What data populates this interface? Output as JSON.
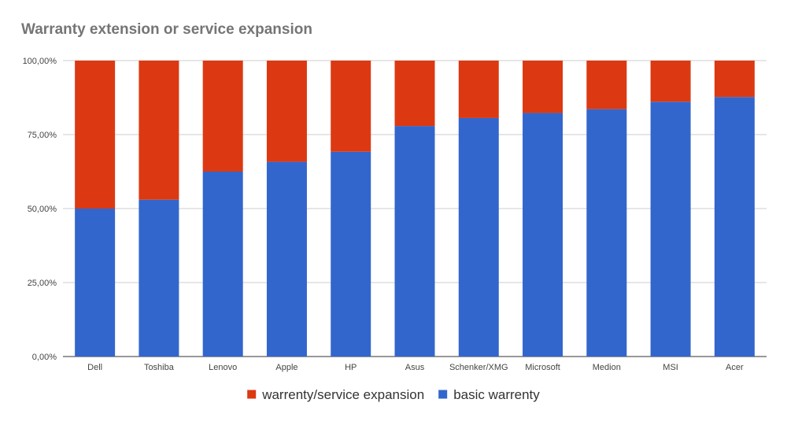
{
  "chart_data": {
    "type": "bar",
    "stacked": true,
    "title": "Warranty extension or service expansion",
    "xlabel": "",
    "ylabel": "",
    "ylim": [
      0,
      100
    ],
    "yticks": [
      0,
      25,
      50,
      75,
      100
    ],
    "ytick_labels": [
      "0,00%",
      "25,00%",
      "50,00%",
      "75,00%",
      "100,00%"
    ],
    "grid": true,
    "legend_position": "bottom",
    "categories": [
      "Dell",
      "Toshiba",
      "Lenovo",
      "Apple",
      "HP",
      "Asus",
      "Schenker/XMG",
      "Microsoft",
      "Medion",
      "MSI",
      "Acer"
    ],
    "series": [
      {
        "name": "basic warrenty",
        "color": "#3366cc",
        "values": [
          50.0,
          53.0,
          62.5,
          65.8,
          69.2,
          77.9,
          80.6,
          82.3,
          83.6,
          86.1,
          87.7
        ]
      },
      {
        "name": "warrenty/service expansion",
        "color": "#dc3912",
        "values": [
          50.0,
          47.0,
          37.5,
          34.2,
          30.8,
          22.1,
          19.4,
          17.7,
          16.4,
          13.9,
          12.3
        ]
      }
    ],
    "legend_order": [
      1,
      0
    ]
  }
}
